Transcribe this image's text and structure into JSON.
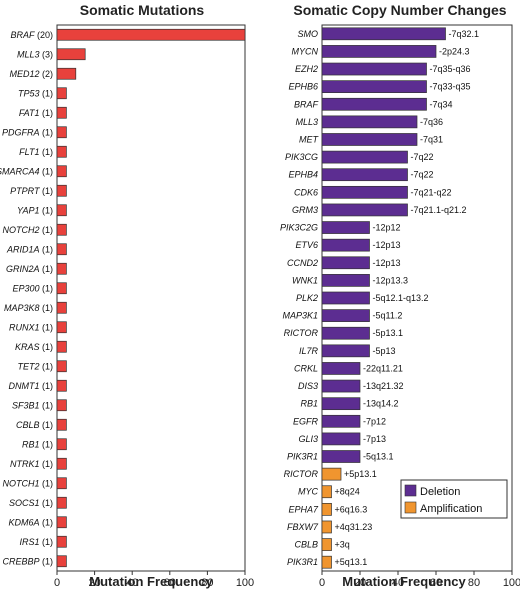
{
  "colors": {
    "mutation_bar": "#e8413c",
    "deletion": "#5c2d91",
    "amplification": "#f0952f",
    "frame": "#333333",
    "text": "#222222"
  },
  "chart_data": [
    {
      "type": "bar",
      "orientation": "horizontal",
      "title": "Somatic Mutations",
      "xlabel": "Mutation Frequency",
      "ylabel": "",
      "xlim": [
        0,
        100
      ],
      "xticks": [
        0,
        20,
        40,
        60,
        80,
        100
      ],
      "grid": false,
      "categories": [
        {
          "gene": "BRAF",
          "count": "(20)"
        },
        {
          "gene": "MLL3",
          "count": "(3)"
        },
        {
          "gene": "MED12",
          "count": "(2)"
        },
        {
          "gene": "TP53",
          "count": "(1)"
        },
        {
          "gene": "FAT1",
          "count": "(1)"
        },
        {
          "gene": "PDGFRA",
          "count": "(1)"
        },
        {
          "gene": "FLT1",
          "count": "(1)"
        },
        {
          "gene": "SMARCA4",
          "count": "(1)"
        },
        {
          "gene": "PTPRT",
          "count": "(1)"
        },
        {
          "gene": "YAP1",
          "count": "(1)"
        },
        {
          "gene": "NOTCH2",
          "count": "(1)"
        },
        {
          "gene": "ARID1A",
          "count": "(1)"
        },
        {
          "gene": "GRIN2A",
          "count": "(1)"
        },
        {
          "gene": "EP300",
          "count": "(1)"
        },
        {
          "gene": "MAP3K8",
          "count": "(1)"
        },
        {
          "gene": "RUNX1",
          "count": "(1)"
        },
        {
          "gene": "KRAS",
          "count": "(1)"
        },
        {
          "gene": "TET2",
          "count": "(1)"
        },
        {
          "gene": "DNMT1",
          "count": "(1)"
        },
        {
          "gene": "SF3B1",
          "count": "(1)"
        },
        {
          "gene": "CBLB",
          "count": "(1)"
        },
        {
          "gene": "RB1",
          "count": "(1)"
        },
        {
          "gene": "NTRK1",
          "count": "(1)"
        },
        {
          "gene": "NOTCH1",
          "count": "(1)"
        },
        {
          "gene": "SOCS1",
          "count": "(1)"
        },
        {
          "gene": "KDM6A",
          "count": "(1)"
        },
        {
          "gene": "IRS1",
          "count": "(1)"
        },
        {
          "gene": "CREBBP",
          "count": "(1)"
        }
      ],
      "values": [
        100,
        15,
        10,
        5,
        5,
        5,
        5,
        5,
        5,
        5,
        5,
        5,
        5,
        5,
        5,
        5,
        5,
        5,
        5,
        5,
        5,
        5,
        5,
        5,
        5,
        5,
        5,
        5
      ]
    },
    {
      "type": "bar",
      "orientation": "horizontal",
      "title": "Somatic Copy Number Changes",
      "xlabel": "Mutation Frequency",
      "ylabel": "",
      "xlim": [
        0,
        100
      ],
      "xticks": [
        0,
        20,
        40,
        60,
        80,
        100
      ],
      "grid": false,
      "legend": {
        "placement": "bottom-right",
        "entries": [
          {
            "name": "Deletion",
            "color_key": "deletion"
          },
          {
            "name": "Amplification",
            "color_key": "amplification"
          }
        ]
      },
      "bars": [
        {
          "gene": "SMO",
          "value": 65,
          "label": "-7q32.1",
          "kind": "deletion"
        },
        {
          "gene": "MYCN",
          "value": 60,
          "label": "-2p24.3",
          "kind": "deletion"
        },
        {
          "gene": "EZH2",
          "value": 55,
          "label": "-7q35-q36",
          "kind": "deletion"
        },
        {
          "gene": "EPHB6",
          "value": 55,
          "label": "-7q33-q35",
          "kind": "deletion"
        },
        {
          "gene": "BRAF",
          "value": 55,
          "label": "-7q34",
          "kind": "deletion"
        },
        {
          "gene": "MLL3",
          "value": 50,
          "label": "-7q36",
          "kind": "deletion"
        },
        {
          "gene": "MET",
          "value": 50,
          "label": "-7q31",
          "kind": "deletion"
        },
        {
          "gene": "PIK3CG",
          "value": 45,
          "label": "-7q22",
          "kind": "deletion"
        },
        {
          "gene": "EPHB4",
          "value": 45,
          "label": "-7q22",
          "kind": "deletion"
        },
        {
          "gene": "CDK6",
          "value": 45,
          "label": "-7q21-q22",
          "kind": "deletion"
        },
        {
          "gene": "GRM3",
          "value": 45,
          "label": "-7q21.1-q21.2",
          "kind": "deletion"
        },
        {
          "gene": "PIK3C2G",
          "value": 25,
          "label": "-12p12",
          "kind": "deletion"
        },
        {
          "gene": "ETV6",
          "value": 25,
          "label": "-12p13",
          "kind": "deletion"
        },
        {
          "gene": "CCND2",
          "value": 25,
          "label": "-12p13",
          "kind": "deletion"
        },
        {
          "gene": "WNK1",
          "value": 25,
          "label": "-12p13.3",
          "kind": "deletion"
        },
        {
          "gene": "PLK2",
          "value": 25,
          "label": "-5q12.1-q13.2",
          "kind": "deletion"
        },
        {
          "gene": "MAP3K1",
          "value": 25,
          "label": "-5q11.2",
          "kind": "deletion"
        },
        {
          "gene": "RICTOR",
          "value": 25,
          "label": "-5p13.1",
          "kind": "deletion"
        },
        {
          "gene": "IL7R",
          "value": 25,
          "label": "-5p13",
          "kind": "deletion"
        },
        {
          "gene": "CRKL",
          "value": 20,
          "label": "-22q11.21",
          "kind": "deletion"
        },
        {
          "gene": "DIS3",
          "value": 20,
          "label": "-13q21.32",
          "kind": "deletion"
        },
        {
          "gene": "RB1",
          "value": 20,
          "label": "-13q14.2",
          "kind": "deletion"
        },
        {
          "gene": "EGFR",
          "value": 20,
          "label": "-7p12",
          "kind": "deletion"
        },
        {
          "gene": "GLI3",
          "value": 20,
          "label": "-7p13",
          "kind": "deletion"
        },
        {
          "gene": "PIK3R1",
          "value": 20,
          "label": "-5q13.1",
          "kind": "deletion"
        },
        {
          "gene": "RICTOR",
          "value": 10,
          "label": "+5p13.1",
          "kind": "amplification"
        },
        {
          "gene": "MYC",
          "value": 5,
          "label": "+8q24",
          "kind": "amplification"
        },
        {
          "gene": "EPHA7",
          "value": 5,
          "label": "+6q16.3",
          "kind": "amplification"
        },
        {
          "gene": "FBXW7",
          "value": 5,
          "label": "+4q31.23",
          "kind": "amplification"
        },
        {
          "gene": "CBLB",
          "value": 5,
          "label": "+3q",
          "kind": "amplification"
        },
        {
          "gene": "PIK3R1",
          "value": 5,
          "label": "+5q13.1",
          "kind": "amplification"
        }
      ]
    }
  ]
}
